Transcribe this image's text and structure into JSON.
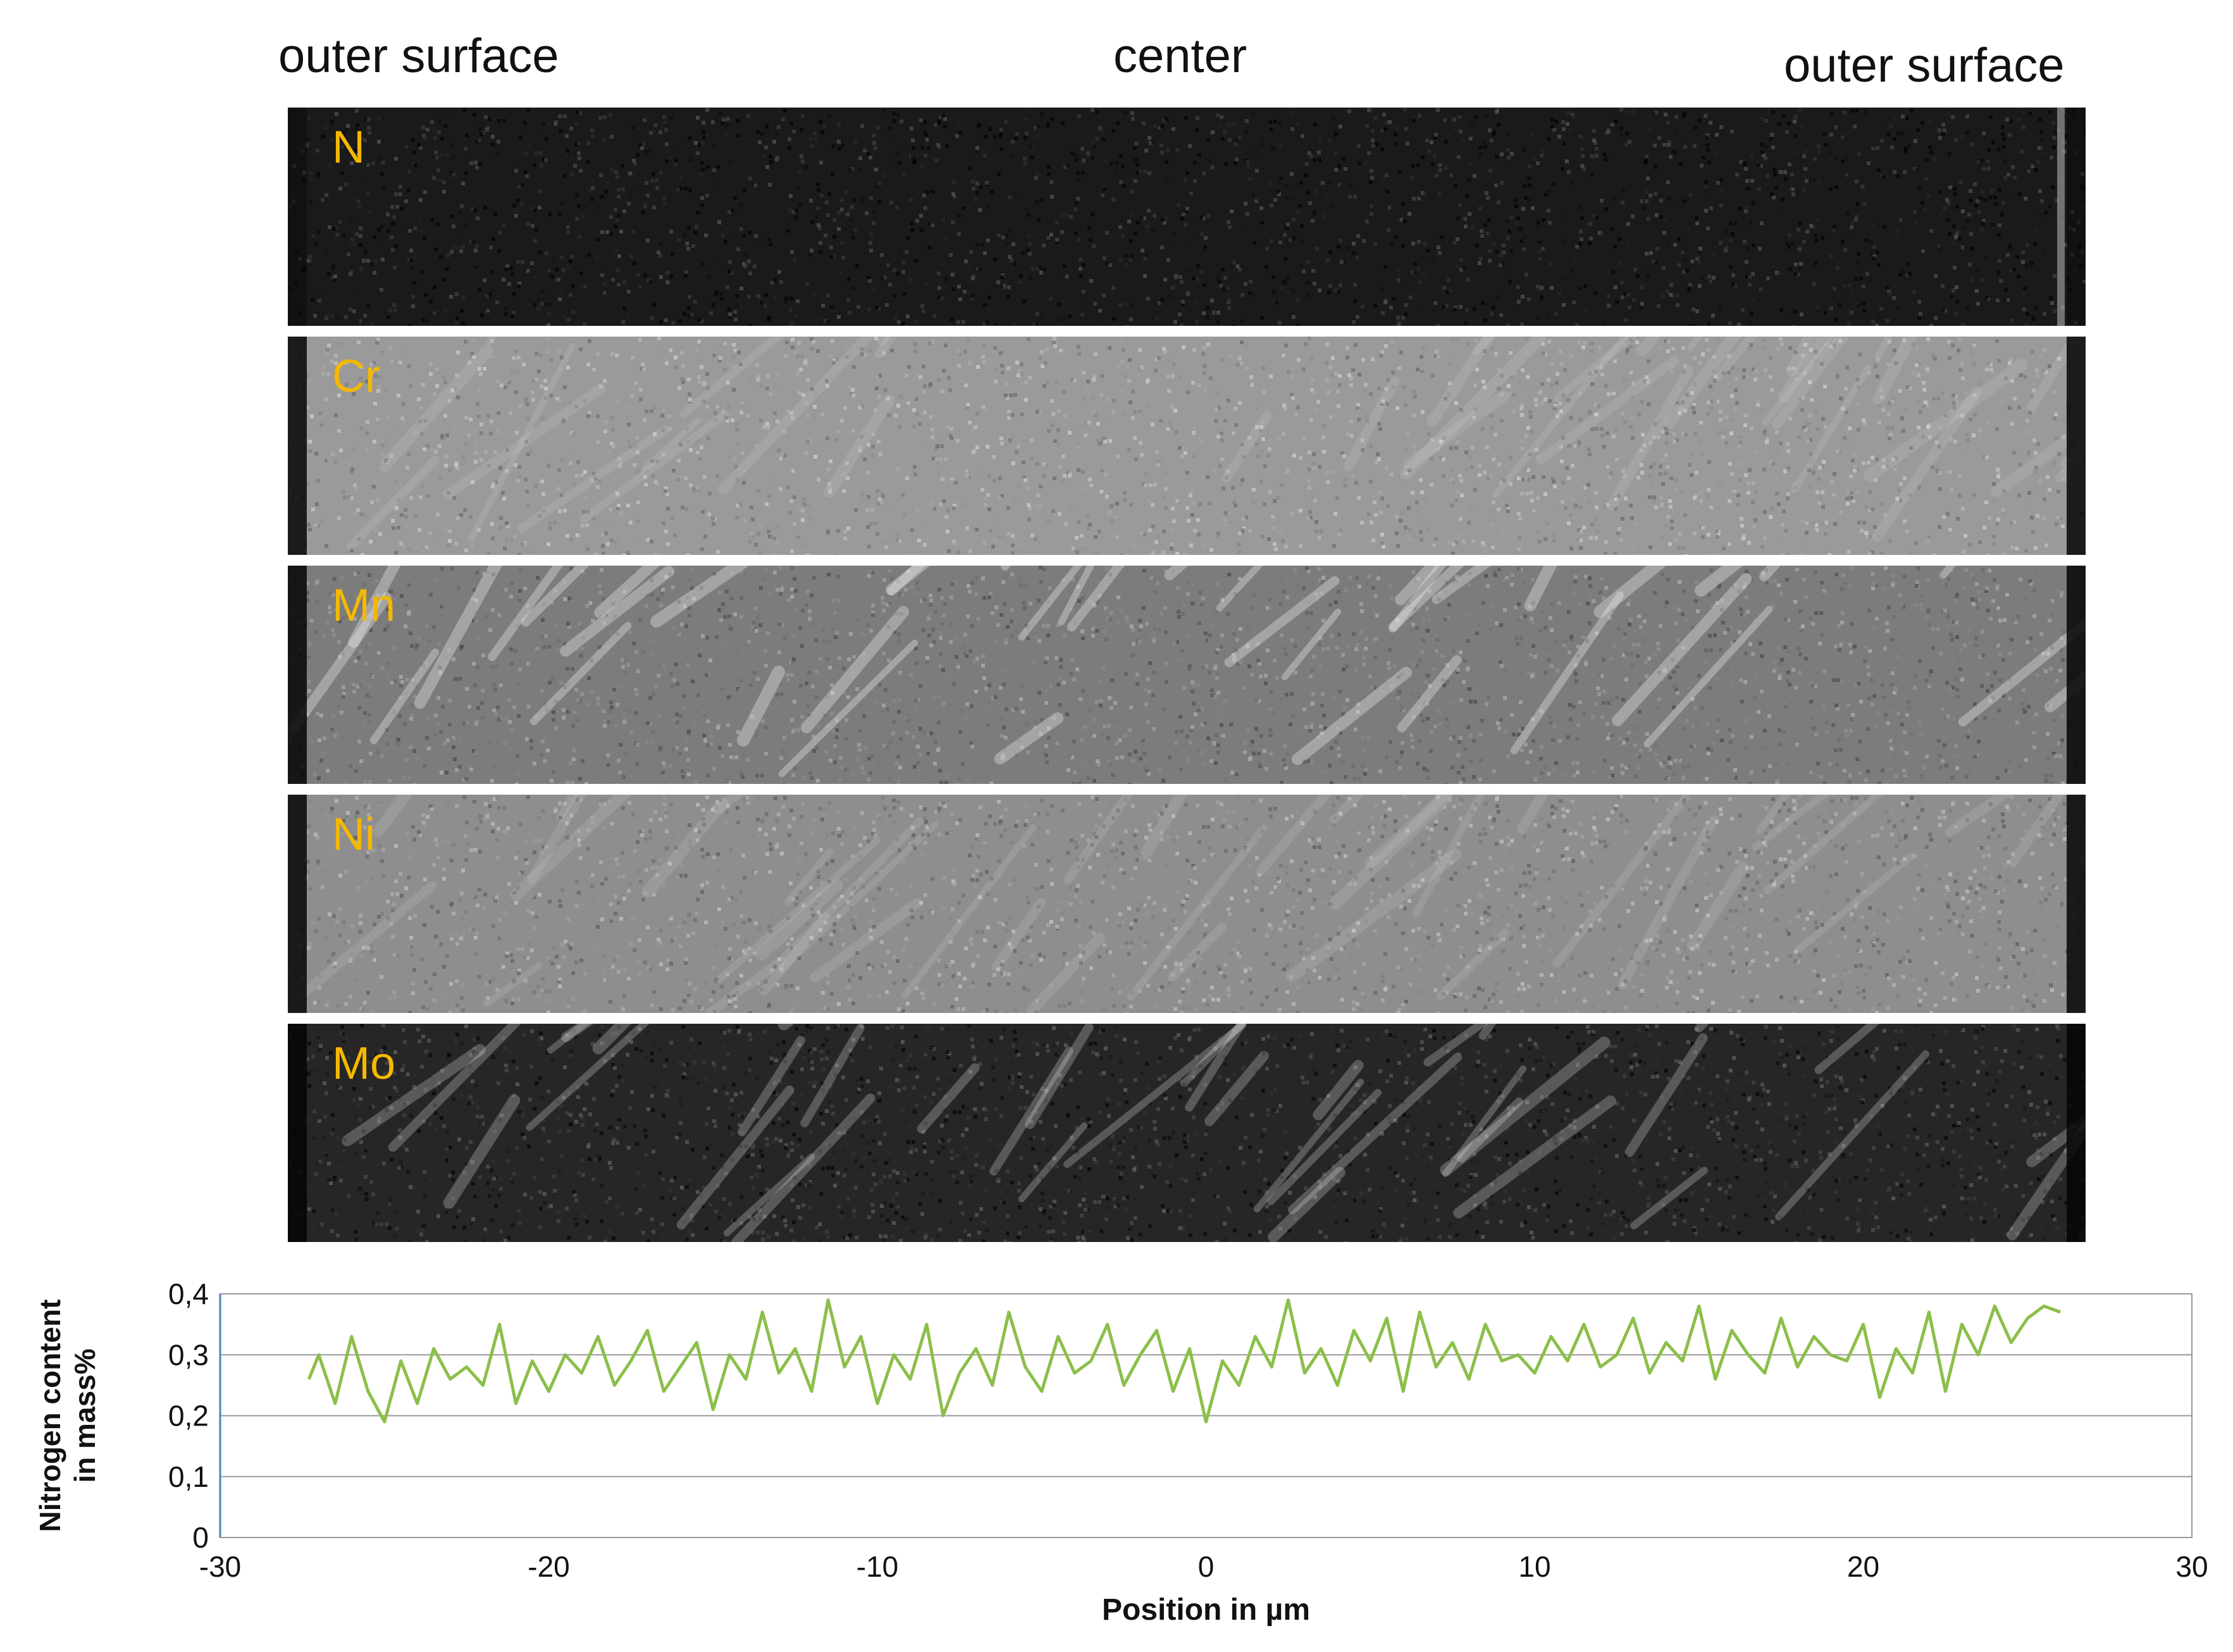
{
  "figure": {
    "header_left": "outer surface",
    "header_center": "center",
    "header_right": "outer surface"
  },
  "panels": [
    {
      "element": "N",
      "label_color": "#f5b800",
      "base_color": "#1a1a1a",
      "brightness": 0.15
    },
    {
      "element": "Cr",
      "label_color": "#f5b800",
      "base_color": "#9a9a9a",
      "brightness": 0.62
    },
    {
      "element": "Mn",
      "label_color": "#f5b800",
      "base_color": "#7c7c7c",
      "brightness": 0.5
    },
    {
      "element": "Ni",
      "label_color": "#f5b800",
      "base_color": "#8e8e8e",
      "brightness": 0.57
    },
    {
      "element": "Mo",
      "label_color": "#f5b800",
      "base_color": "#262626",
      "brightness": 0.2
    }
  ],
  "chart_data": {
    "type": "line",
    "title": "",
    "xlabel": "Position in µm",
    "ylabel": "Nitrogen content in mass%",
    "ylabel_lines": [
      "Nitrogen content",
      "in mass%"
    ],
    "xlim": [
      -30,
      30
    ],
    "ylim": [
      0,
      0.4
    ],
    "x_ticks": [
      -30,
      -20,
      -10,
      0,
      10,
      20,
      30
    ],
    "x_tick_labels": [
      "-30",
      "-20",
      "-10",
      "0",
      "10",
      "20",
      "30"
    ],
    "y_ticks": [
      0,
      0.1,
      0.2,
      0.3,
      0.4
    ],
    "y_tick_labels": [
      "0",
      "0,1",
      "0,2",
      "0,3",
      "0,4"
    ],
    "grid": "horizontal",
    "line_color": "#8cbf4a",
    "series": [
      {
        "x": [
          -27.3,
          -27,
          -26.5,
          -26,
          -25.5,
          -25,
          -24.5,
          -24,
          -23.5,
          -23,
          -22.5,
          -22,
          -21.5,
          -21,
          -20.5,
          -20,
          -19.5,
          -19,
          -18.5,
          -18,
          -17.5,
          -17,
          -16.5,
          -16,
          -15.5,
          -15,
          -14.5,
          -14,
          -13.5,
          -13,
          -12.5,
          -12,
          -11.5,
          -11,
          -10.5,
          -10,
          -9.5,
          -9,
          -8.5,
          -8,
          -7.5,
          -7,
          -6.5,
          -6,
          -5.5,
          -5,
          -4.5,
          -4,
          -3.5,
          -3,
          -2.5,
          -2,
          -1.5,
          -1,
          -0.5,
          0,
          0.5,
          1,
          1.5,
          2,
          2.5,
          3,
          3.5,
          4,
          4.5,
          5,
          5.5,
          6,
          6.5,
          7,
          7.5,
          8,
          8.5,
          9,
          9.5,
          10,
          10.5,
          11,
          11.5,
          12,
          12.5,
          13,
          13.5,
          14,
          14.5,
          15,
          15.5,
          16,
          16.5,
          17,
          17.5,
          18,
          18.5,
          19,
          19.5,
          20,
          20.5,
          21,
          21.5,
          22,
          22.5,
          23,
          23.5,
          24,
          24.5,
          25,
          25.5,
          26
        ],
        "y": [
          0.26,
          0.3,
          0.22,
          0.33,
          0.24,
          0.19,
          0.29,
          0.22,
          0.31,
          0.26,
          0.28,
          0.25,
          0.35,
          0.22,
          0.29,
          0.24,
          0.3,
          0.27,
          0.33,
          0.25,
          0.29,
          0.34,
          0.24,
          0.28,
          0.32,
          0.21,
          0.3,
          0.26,
          0.37,
          0.27,
          0.31,
          0.24,
          0.39,
          0.28,
          0.33,
          0.22,
          0.3,
          0.26,
          0.35,
          0.2,
          0.27,
          0.31,
          0.25,
          0.37,
          0.28,
          0.24,
          0.33,
          0.27,
          0.29,
          0.35,
          0.25,
          0.3,
          0.34,
          0.24,
          0.31,
          0.19,
          0.29,
          0.25,
          0.33,
          0.28,
          0.39,
          0.27,
          0.31,
          0.25,
          0.34,
          0.29,
          0.36,
          0.24,
          0.37,
          0.28,
          0.32,
          0.26,
          0.35,
          0.29,
          0.3,
          0.27,
          0.33,
          0.29,
          0.35,
          0.28,
          0.3,
          0.36,
          0.27,
          0.32,
          0.29,
          0.38,
          0.26,
          0.34,
          0.3,
          0.27,
          0.36,
          0.28,
          0.33,
          0.3,
          0.29,
          0.35,
          0.23,
          0.31,
          0.27,
          0.37,
          0.24,
          0.35,
          0.3,
          0.38,
          0.32,
          0.36,
          0.38,
          0.37
        ]
      }
    ]
  }
}
